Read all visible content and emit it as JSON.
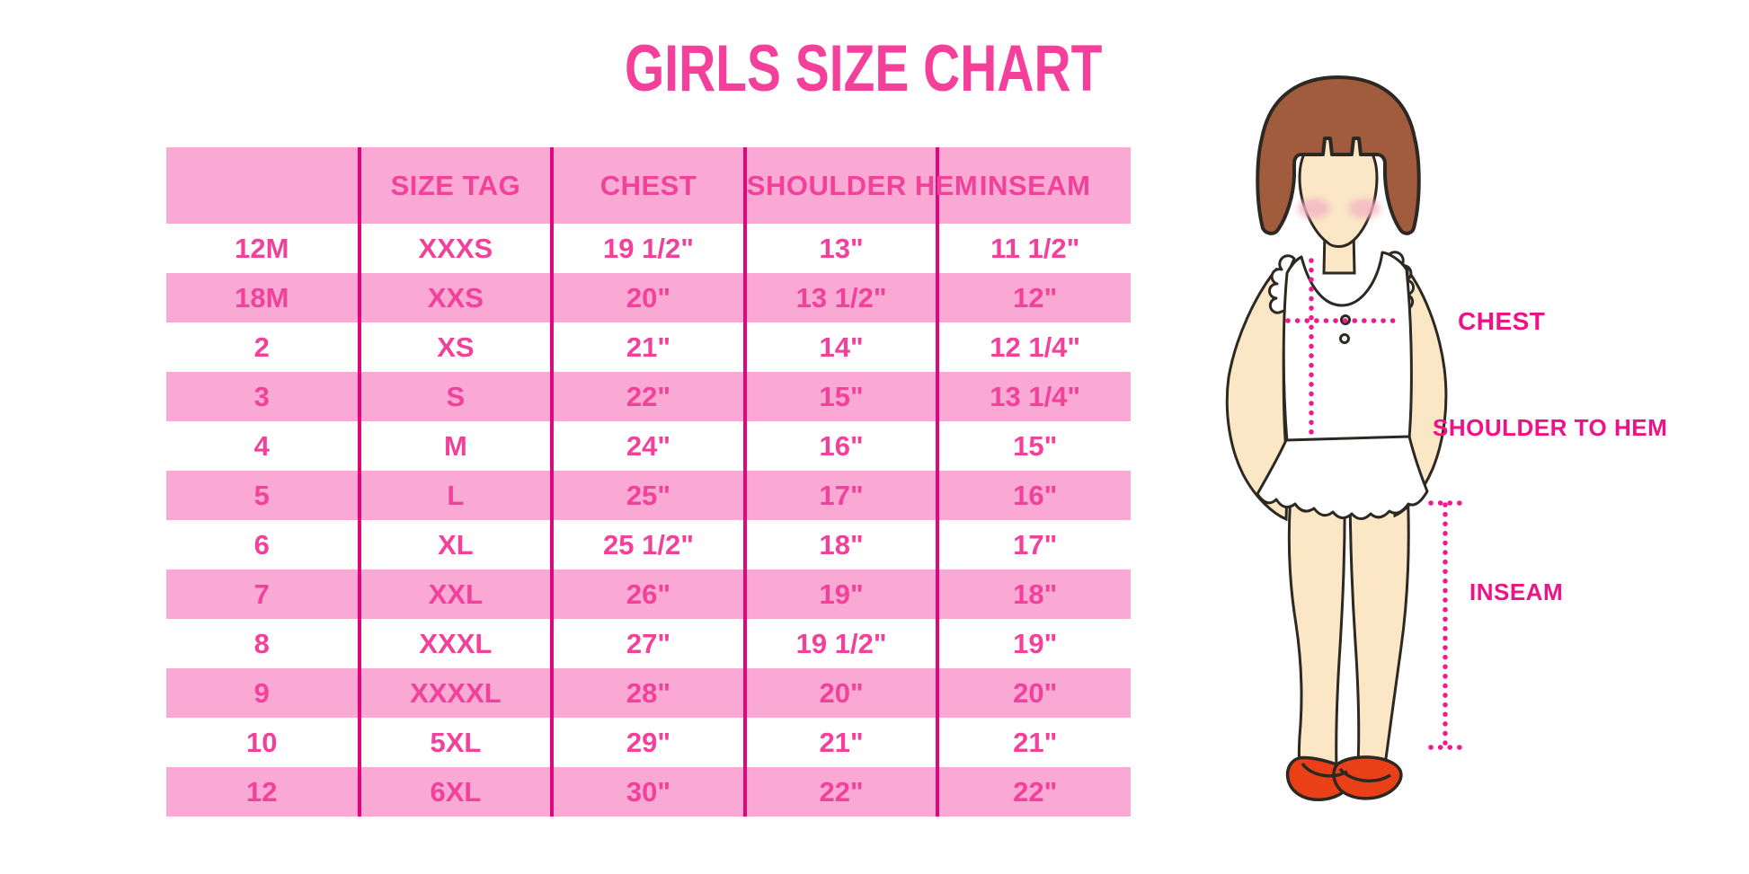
{
  "page": {
    "title": "GIRLS SIZE CHART"
  },
  "figure": {
    "labels": {
      "chest": "CHEST",
      "shoulder_to_hem": "SHOULDER TO HEM",
      "inseam": "INSEAM"
    }
  },
  "colors": {
    "title_pink": "#F4409B",
    "table_text_pink": "#F2419B",
    "row_pink": "#F9A9D3",
    "divider_magenta": "#E0077E",
    "label_magenta": "#EF1287",
    "dot_magenta": "#EF1A8B",
    "hair_brown": "#A15C3D",
    "skin_tone": "#FBE7C6",
    "blush_pink": "#F3B3C2",
    "shoe_red": "#E94018",
    "outline_dark": "#2E2823"
  },
  "chart_data": {
    "type": "table",
    "title": "GIRLS SIZE CHART",
    "columns": [
      "",
      "SIZE TAG",
      "CHEST",
      "SHOULDER HEM",
      "INSEAM"
    ],
    "rows": [
      [
        "12M",
        "XXXS",
        "19 1/2\"",
        "13\"",
        "11 1/2\""
      ],
      [
        "18M",
        "XXS",
        "20\"",
        "13 1/2\"",
        "12\""
      ],
      [
        "2",
        "XS",
        "21\"",
        "14\"",
        "12 1/4\""
      ],
      [
        "3",
        "S",
        "22\"",
        "15\"",
        "13 1/4\""
      ],
      [
        "4",
        "M",
        "24\"",
        "16\"",
        "15\""
      ],
      [
        "5",
        "L",
        "25\"",
        "17\"",
        "16\""
      ],
      [
        "6",
        "XL",
        "25 1/2\"",
        "18\"",
        "17\""
      ],
      [
        "7",
        "XXL",
        "26\"",
        "19\"",
        "18\""
      ],
      [
        "8",
        "XXXL",
        "27\"",
        "19 1/2\"",
        "19\""
      ],
      [
        "9",
        "XXXXL",
        "28\"",
        "20\"",
        "20\""
      ],
      [
        "10",
        "5XL",
        "29\"",
        "21\"",
        "21\""
      ],
      [
        "12",
        "6XL",
        "30\"",
        "22\"",
        "22\""
      ]
    ]
  }
}
